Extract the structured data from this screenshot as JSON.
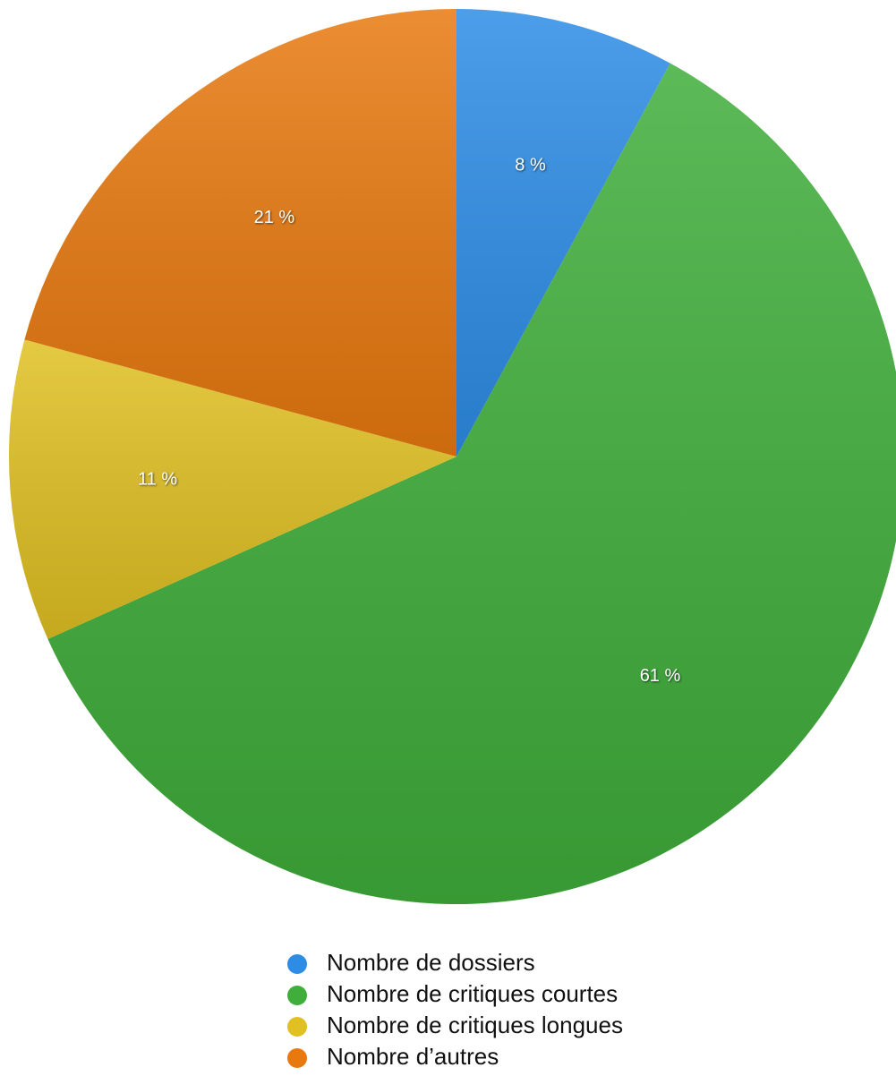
{
  "chart_data": {
    "type": "pie",
    "categories": [
      "Nombre de dossiers",
      "Nombre de critiques courtes",
      "Nombre de critiques longues",
      "Nombre d’autres"
    ],
    "values": [
      8,
      61,
      11,
      21
    ],
    "value_labels": [
      "8 %",
      "61 %",
      "11 %",
      "21 %"
    ],
    "colors": [
      "#2d8de6",
      "#3fae3a",
      "#e0c022",
      "#e8790f"
    ],
    "legend": "bottom"
  }
}
